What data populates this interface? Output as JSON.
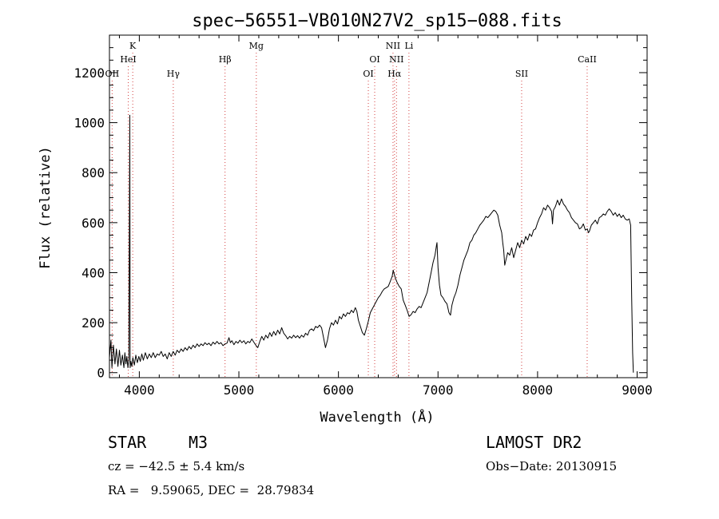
{
  "chart_data": {
    "type": "line",
    "title": "spec−56551−VB010N27V2_sp15−088.fits",
    "xlabel": "Wavelength (Å)",
    "ylabel": "Flux (relative)",
    "xlim": [
      3700,
      9100
    ],
    "ylim": [
      -20,
      1350
    ],
    "x_ticks": [
      4000,
      5000,
      6000,
      7000,
      8000,
      9000
    ],
    "y_ticks": [
      0,
      200,
      400,
      600,
      800,
      1000,
      1200
    ],
    "grid": false,
    "series": [
      {
        "points": [
          [
            3700,
            60
          ],
          [
            3715,
            130
          ],
          [
            3725,
            20
          ],
          [
            3740,
            110
          ],
          [
            3755,
            35
          ],
          [
            3770,
            95
          ],
          [
            3785,
            25
          ],
          [
            3800,
            90
          ],
          [
            3815,
            30
          ],
          [
            3830,
            70
          ],
          [
            3845,
            20
          ],
          [
            3855,
            80
          ],
          [
            3865,
            35
          ],
          [
            3875,
            65
          ],
          [
            3885,
            20
          ],
          [
            3895,
            55
          ],
          [
            3905,
            1030
          ],
          [
            3908,
            20
          ],
          [
            3915,
            45
          ],
          [
            3925,
            25
          ],
          [
            3935,
            60
          ],
          [
            3950,
            30
          ],
          [
            3965,
            70
          ],
          [
            3980,
            40
          ],
          [
            3995,
            65
          ],
          [
            4010,
            45
          ],
          [
            4025,
            75
          ],
          [
            4040,
            50
          ],
          [
            4060,
            80
          ],
          [
            4080,
            55
          ],
          [
            4100,
            75
          ],
          [
            4120,
            60
          ],
          [
            4140,
            80
          ],
          [
            4160,
            60
          ],
          [
            4180,
            75
          ],
          [
            4200,
            70
          ],
          [
            4220,
            85
          ],
          [
            4240,
            65
          ],
          [
            4260,
            75
          ],
          [
            4280,
            55
          ],
          [
            4300,
            80
          ],
          [
            4320,
            65
          ],
          [
            4340,
            85
          ],
          [
            4360,
            70
          ],
          [
            4380,
            90
          ],
          [
            4400,
            80
          ],
          [
            4420,
            95
          ],
          [
            4440,
            85
          ],
          [
            4460,
            100
          ],
          [
            4480,
            90
          ],
          [
            4500,
            105
          ],
          [
            4520,
            95
          ],
          [
            4540,
            110
          ],
          [
            4560,
            100
          ],
          [
            4580,
            115
          ],
          [
            4600,
            105
          ],
          [
            4620,
            115
          ],
          [
            4640,
            108
          ],
          [
            4660,
            120
          ],
          [
            4680,
            112
          ],
          [
            4700,
            118
          ],
          [
            4720,
            108
          ],
          [
            4740,
            122
          ],
          [
            4760,
            114
          ],
          [
            4780,
            125
          ],
          [
            4800,
            115
          ],
          [
            4820,
            120
          ],
          [
            4840,
            108
          ],
          [
            4860,
            115
          ],
          [
            4880,
            118
          ],
          [
            4900,
            140
          ],
          [
            4915,
            120
          ],
          [
            4930,
            128
          ],
          [
            4950,
            112
          ],
          [
            4970,
            125
          ],
          [
            4990,
            118
          ],
          [
            5010,
            130
          ],
          [
            5030,
            120
          ],
          [
            5050,
            128
          ],
          [
            5070,
            115
          ],
          [
            5090,
            125
          ],
          [
            5110,
            120
          ],
          [
            5130,
            135
          ],
          [
            5150,
            122
          ],
          [
            5170,
            110
          ],
          [
            5190,
            100
          ],
          [
            5210,
            125
          ],
          [
            5230,
            145
          ],
          [
            5250,
            130
          ],
          [
            5270,
            150
          ],
          [
            5290,
            138
          ],
          [
            5310,
            160
          ],
          [
            5330,
            145
          ],
          [
            5350,
            165
          ],
          [
            5370,
            150
          ],
          [
            5390,
            170
          ],
          [
            5410,
            155
          ],
          [
            5430,
            180
          ],
          [
            5450,
            158
          ],
          [
            5470,
            148
          ],
          [
            5490,
            135
          ],
          [
            5510,
            145
          ],
          [
            5530,
            138
          ],
          [
            5550,
            150
          ],
          [
            5570,
            140
          ],
          [
            5590,
            148
          ],
          [
            5610,
            138
          ],
          [
            5630,
            150
          ],
          [
            5650,
            142
          ],
          [
            5670,
            158
          ],
          [
            5690,
            150
          ],
          [
            5710,
            170
          ],
          [
            5730,
            175
          ],
          [
            5750,
            168
          ],
          [
            5770,
            185
          ],
          [
            5790,
            180
          ],
          [
            5810,
            190
          ],
          [
            5830,
            180
          ],
          [
            5850,
            140
          ],
          [
            5870,
            100
          ],
          [
            5890,
            130
          ],
          [
            5910,
            175
          ],
          [
            5930,
            200
          ],
          [
            5950,
            190
          ],
          [
            5970,
            210
          ],
          [
            5990,
            195
          ],
          [
            6010,
            225
          ],
          [
            6030,
            215
          ],
          [
            6050,
            235
          ],
          [
            6070,
            225
          ],
          [
            6090,
            240
          ],
          [
            6110,
            235
          ],
          [
            6130,
            250
          ],
          [
            6150,
            240
          ],
          [
            6170,
            260
          ],
          [
            6185,
            245
          ],
          [
            6200,
            210
          ],
          [
            6220,
            185
          ],
          [
            6240,
            160
          ],
          [
            6260,
            150
          ],
          [
            6280,
            175
          ],
          [
            6300,
            205
          ],
          [
            6320,
            240
          ],
          [
            6340,
            255
          ],
          [
            6360,
            270
          ],
          [
            6380,
            285
          ],
          [
            6400,
            300
          ],
          [
            6420,
            310
          ],
          [
            6440,
            325
          ],
          [
            6460,
            335
          ],
          [
            6480,
            340
          ],
          [
            6500,
            345
          ],
          [
            6520,
            365
          ],
          [
            6540,
            385
          ],
          [
            6550,
            410
          ],
          [
            6560,
            395
          ],
          [
            6575,
            375
          ],
          [
            6590,
            360
          ],
          [
            6610,
            345
          ],
          [
            6630,
            335
          ],
          [
            6650,
            290
          ],
          [
            6670,
            270
          ],
          [
            6690,
            250
          ],
          [
            6710,
            225
          ],
          [
            6730,
            232
          ],
          [
            6750,
            245
          ],
          [
            6770,
            240
          ],
          [
            6790,
            255
          ],
          [
            6810,
            265
          ],
          [
            6830,
            260
          ],
          [
            6850,
            280
          ],
          [
            6870,
            300
          ],
          [
            6890,
            320
          ],
          [
            6910,
            360
          ],
          [
            6930,
            400
          ],
          [
            6950,
            440
          ],
          [
            6970,
            470
          ],
          [
            6985,
            510
          ],
          [
            6990,
            520
          ],
          [
            7000,
            420
          ],
          [
            7015,
            350
          ],
          [
            7030,
            310
          ],
          [
            7050,
            300
          ],
          [
            7070,
            285
          ],
          [
            7090,
            275
          ],
          [
            7110,
            240
          ],
          [
            7125,
            230
          ],
          [
            7140,
            270
          ],
          [
            7160,
            300
          ],
          [
            7180,
            320
          ],
          [
            7200,
            350
          ],
          [
            7220,
            390
          ],
          [
            7240,
            420
          ],
          [
            7260,
            450
          ],
          [
            7280,
            470
          ],
          [
            7300,
            490
          ],
          [
            7320,
            520
          ],
          [
            7340,
            530
          ],
          [
            7360,
            550
          ],
          [
            7380,
            560
          ],
          [
            7400,
            575
          ],
          [
            7420,
            590
          ],
          [
            7440,
            600
          ],
          [
            7460,
            610
          ],
          [
            7480,
            625
          ],
          [
            7500,
            620
          ],
          [
            7520,
            630
          ],
          [
            7540,
            640
          ],
          [
            7560,
            650
          ],
          [
            7580,
            645
          ],
          [
            7600,
            630
          ],
          [
            7620,
            590
          ],
          [
            7640,
            560
          ],
          [
            7650,
            520
          ],
          [
            7660,
            490
          ],
          [
            7670,
            430
          ],
          [
            7685,
            455
          ],
          [
            7700,
            480
          ],
          [
            7720,
            470
          ],
          [
            7740,
            500
          ],
          [
            7760,
            460
          ],
          [
            7780,
            490
          ],
          [
            7800,
            520
          ],
          [
            7820,
            500
          ],
          [
            7840,
            530
          ],
          [
            7860,
            515
          ],
          [
            7880,
            545
          ],
          [
            7900,
            530
          ],
          [
            7920,
            555
          ],
          [
            7940,
            545
          ],
          [
            7960,
            570
          ],
          [
            7980,
            575
          ],
          [
            8000,
            600
          ],
          [
            8020,
            620
          ],
          [
            8040,
            635
          ],
          [
            8060,
            660
          ],
          [
            8080,
            650
          ],
          [
            8100,
            670
          ],
          [
            8120,
            660
          ],
          [
            8140,
            645
          ],
          [
            8150,
            595
          ],
          [
            8160,
            650
          ],
          [
            8180,
            665
          ],
          [
            8200,
            690
          ],
          [
            8220,
            670
          ],
          [
            8240,
            695
          ],
          [
            8260,
            675
          ],
          [
            8280,
            665
          ],
          [
            8300,
            650
          ],
          [
            8320,
            640
          ],
          [
            8340,
            620
          ],
          [
            8360,
            610
          ],
          [
            8380,
            600
          ],
          [
            8400,
            595
          ],
          [
            8420,
            575
          ],
          [
            8440,
            580
          ],
          [
            8460,
            595
          ],
          [
            8480,
            570
          ],
          [
            8500,
            575
          ],
          [
            8510,
            560
          ],
          [
            8520,
            565
          ],
          [
            8540,
            590
          ],
          [
            8560,
            600
          ],
          [
            8580,
            610
          ],
          [
            8600,
            595
          ],
          [
            8620,
            620
          ],
          [
            8640,
            625
          ],
          [
            8660,
            635
          ],
          [
            8680,
            630
          ],
          [
            8700,
            645
          ],
          [
            8720,
            655
          ],
          [
            8740,
            645
          ],
          [
            8760,
            630
          ],
          [
            8780,
            640
          ],
          [
            8800,
            625
          ],
          [
            8820,
            635
          ],
          [
            8840,
            620
          ],
          [
            8860,
            630
          ],
          [
            8880,
            615
          ],
          [
            8900,
            610
          ],
          [
            8920,
            615
          ],
          [
            8935,
            590
          ],
          [
            8945,
            300
          ],
          [
            8955,
            80
          ],
          [
            8962,
            0
          ]
        ]
      }
    ],
    "lines": [
      {
        "label": "OII",
        "x": 3727,
        "row": 2
      },
      {
        "label": "K",
        "x": 3934,
        "row": 0
      },
      {
        "label": "HeI",
        "x": 3889,
        "row": 1
      },
      {
        "label": "Hγ",
        "x": 4341,
        "row": 2
      },
      {
        "label": "Hβ",
        "x": 4861,
        "row": 1
      },
      {
        "label": "Mg",
        "x": 5175,
        "row": 0
      },
      {
        "label": "OI",
        "x": 6300,
        "row": 2
      },
      {
        "label": "OI",
        "x": 6364,
        "row": 1
      },
      {
        "label": "NII",
        "x": 6548,
        "row": 0
      },
      {
        "label": "NII",
        "x": 6583,
        "row": 1
      },
      {
        "label": "Hα",
        "x": 6563,
        "row": 2
      },
      {
        "label": "Li",
        "x": 6708,
        "row": 0
      },
      {
        "label": "SII",
        "x": 7840,
        "row": 2
      },
      {
        "label": "CaII",
        "x": 8498,
        "row": 1
      }
    ]
  },
  "footer": {
    "class_label": "STAR",
    "subclass": "M3",
    "survey": "LAMOST DR2",
    "cz": "cz = −42.5 ± 5.4 km/s",
    "obs_date": "Obs−Date: 20130915",
    "coords": "RA =   9.59065, DEC =  28.79834"
  },
  "colors": {
    "spectrum": "#000000",
    "line_markers": "#d44040",
    "axes": "#000000"
  }
}
